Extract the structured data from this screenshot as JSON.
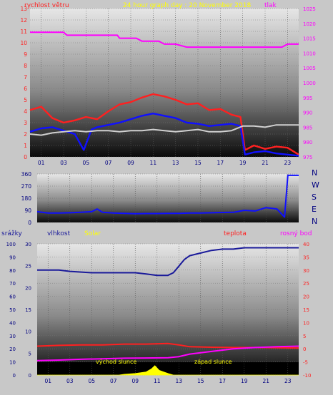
{
  "chart_data": [
    {
      "type": "line",
      "title": "24 hour graph day : 20 November 2018",
      "left_axis_label": "rychlost větru",
      "right_axis_label": "tlak",
      "y_left": {
        "min": 0,
        "max": 13,
        "ticks": [
          0,
          1,
          2,
          3,
          4,
          5,
          6,
          7,
          8,
          9,
          10,
          11,
          12,
          13
        ]
      },
      "y_right": {
        "min": 975,
        "max": 1025,
        "ticks": [
          975,
          980,
          985,
          990,
          995,
          1000,
          1005,
          1010,
          1015,
          1020,
          1025
        ]
      },
      "x_range": [
        0,
        24
      ],
      "x_ticks": [
        "01",
        "03",
        "05",
        "07",
        "09",
        "11",
        "13",
        "15",
        "17",
        "19",
        "21",
        "23"
      ],
      "series": [
        {
          "color": "#ff00ff",
          "axis": "right",
          "x": [
            0,
            3,
            3.3,
            7.8,
            8,
            9.5,
            10,
            11.5,
            12,
            13,
            14,
            19.5,
            20,
            22.5,
            23,
            24
          ],
          "y": [
            1017,
            1017,
            1016,
            1016,
            1015,
            1015,
            1014,
            1014,
            1013,
            1013,
            1012,
            1012,
            1012,
            1012,
            1013,
            1013
          ]
        },
        {
          "color": "#ff2020",
          "axis": "left",
          "x": [
            0,
            1,
            2,
            3,
            4,
            5,
            6,
            7,
            8,
            9,
            10,
            11,
            12,
            13,
            14,
            15,
            16,
            17,
            18,
            18.8,
            19.2,
            20,
            21,
            22,
            23,
            24
          ],
          "y": [
            4.1,
            4.4,
            3.4,
            3.0,
            3.2,
            3.5,
            3.3,
            4.0,
            4.6,
            4.8,
            5.2,
            5.5,
            5.3,
            5.0,
            4.6,
            4.7,
            4.1,
            4.2,
            3.7,
            3.5,
            0.6,
            1.0,
            0.7,
            0.9,
            0.8,
            0.2
          ]
        },
        {
          "color": "#1010ff",
          "axis": "left",
          "x": [
            0,
            1,
            2,
            3,
            4,
            4.8,
            5.5,
            6,
            7,
            8,
            9,
            10,
            11,
            12,
            13,
            14,
            15,
            16,
            17,
            18,
            18.8,
            19.2,
            20,
            21,
            22,
            23,
            24
          ],
          "y": [
            2.2,
            2.5,
            2.6,
            2.3,
            2.0,
            0.6,
            2.4,
            2.6,
            2.8,
            3.0,
            3.3,
            3.6,
            3.8,
            3.6,
            3.4,
            3.0,
            2.9,
            2.7,
            2.8,
            2.9,
            2.7,
            0.2,
            0.4,
            0.5,
            0.3,
            0.2,
            0.1
          ]
        },
        {
          "color": "#d0d0d0",
          "axis": "left",
          "x": [
            0,
            1,
            2,
            3,
            4,
            5,
            6,
            7,
            8,
            9,
            10,
            11,
            12,
            13,
            14,
            15,
            16,
            17,
            18,
            19,
            20,
            21,
            22,
            23,
            24
          ],
          "y": [
            2.0,
            1.9,
            2.1,
            2.2,
            2.3,
            2.2,
            2.3,
            2.3,
            2.2,
            2.3,
            2.3,
            2.4,
            2.3,
            2.2,
            2.3,
            2.4,
            2.2,
            2.2,
            2.3,
            2.7,
            2.7,
            2.6,
            2.8,
            2.8,
            2.8
          ]
        }
      ]
    },
    {
      "type": "line",
      "y_range": [
        0,
        360
      ],
      "y_ticks": [
        0,
        90,
        180,
        270,
        360
      ],
      "direction_labels": [
        "N",
        "W",
        "S",
        "E",
        "N"
      ],
      "x_range": [
        0,
        24
      ],
      "series": [
        {
          "color": "#1010ff",
          "x": [
            0,
            1,
            2,
            3,
            4,
            5,
            5.5,
            6,
            7,
            8,
            9,
            10,
            11,
            12,
            13,
            14,
            15,
            16,
            17,
            18,
            19,
            20,
            21,
            22,
            22.7,
            23,
            23.3,
            24
          ],
          "y": [
            80,
            70,
            70,
            72,
            75,
            80,
            100,
            75,
            70,
            68,
            65,
            66,
            66,
            67,
            68,
            70,
            70,
            72,
            74,
            75,
            90,
            85,
            110,
            100,
            40,
            350,
            350,
            350
          ]
        }
      ]
    },
    {
      "type": "line",
      "left_labels": [
        "srážky",
        "vlhkost",
        "Solar"
      ],
      "right_labels": [
        "teplota",
        "rosný bod"
      ],
      "y_rain": {
        "min": 0,
        "max": 100,
        "ticks": [
          0,
          10,
          20,
          30,
          40,
          50,
          60,
          70,
          80,
          90,
          100
        ]
      },
      "y_hum": {
        "min": 0,
        "max": 30,
        "ticks": [
          0,
          5,
          10,
          15,
          20,
          25,
          30
        ]
      },
      "y_temp": {
        "min": -10,
        "max": 40,
        "ticks": [
          -10,
          -5,
          0,
          5,
          10,
          15,
          20,
          25,
          30,
          35,
          40
        ]
      },
      "x_range": [
        0,
        24
      ],
      "x_ticks": [
        "01",
        "03",
        "05",
        "07",
        "09",
        "11",
        "13",
        "15",
        "17",
        "19",
        "21",
        "23"
      ],
      "annotations": [
        "východ slunce",
        "západ slunce"
      ],
      "series": [
        {
          "color": "#1a1a9a",
          "axis": "rain",
          "x": [
            0,
            2,
            3,
            5,
            6,
            8,
            9,
            10,
            11,
            12,
            12.5,
            13,
            13.5,
            14,
            15,
            16,
            17,
            18,
            19,
            20,
            21,
            22,
            23,
            24
          ],
          "y": [
            80,
            80,
            79,
            78,
            78,
            78,
            78,
            77,
            76,
            76,
            78,
            83,
            88,
            91,
            93,
            95,
            96,
            96,
            97,
            97,
            97,
            97,
            97,
            97
          ]
        },
        {
          "color": "#ff2020",
          "axis": "temp",
          "x": [
            0,
            2,
            4,
            6,
            8,
            10,
            12,
            13,
            14,
            16,
            18,
            20,
            22,
            24
          ],
          "y": [
            1,
            1.3,
            1.5,
            1.5,
            1.8,
            1.8,
            2,
            1.5,
            0.8,
            0.6,
            0.5,
            0.5,
            0.4,
            0.3
          ]
        },
        {
          "color": "#ff00ff",
          "axis": "temp",
          "x": [
            0,
            2,
            4,
            6,
            8,
            10,
            12,
            13,
            14,
            16,
            18,
            20,
            22,
            24
          ],
          "y": [
            -4.5,
            -4.3,
            -4,
            -3.8,
            -3.6,
            -3.5,
            -3.4,
            -3,
            -2,
            -1,
            0,
            0.5,
            0.8,
            1
          ]
        },
        {
          "color": "#ffff00",
          "axis": "solar",
          "x": [
            0,
            7.5,
            8,
            9,
            10,
            10.5,
            10.8,
            11.2,
            11.6,
            12,
            12.5,
            24
          ],
          "y": [
            0,
            0,
            0.5,
            1,
            2,
            4,
            6,
            3,
            2,
            1,
            0,
            0
          ]
        }
      ]
    }
  ]
}
